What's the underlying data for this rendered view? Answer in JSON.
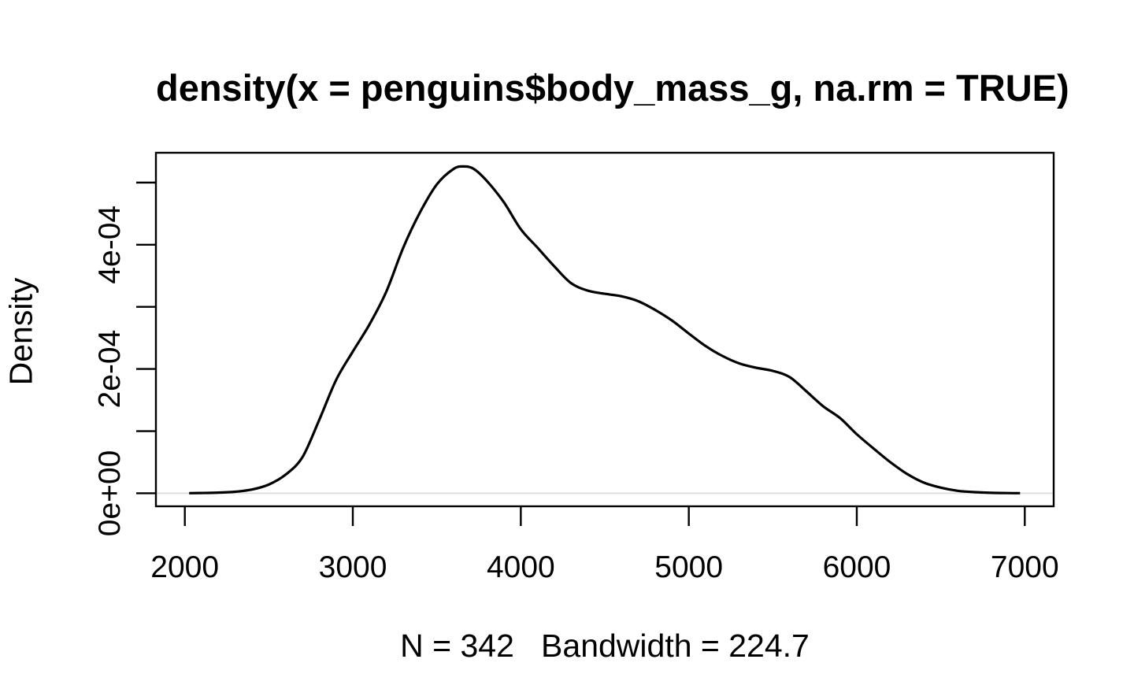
{
  "figure": {
    "title": "density(x = penguins$body_mass_g, na.rm = TRUE)",
    "subtitle": "N = 342   Bandwidth = 224.7",
    "y_axis_title": "Density"
  },
  "style": {
    "background": "#ffffff",
    "foreground": "#000000",
    "zero_line_color": "#dcdcdc"
  },
  "chart_data": {
    "type": "line",
    "title": "density(x = penguins$body_mass_g, na.rm = TRUE)",
    "xlabel": "N = 342   Bandwidth = 224.7",
    "ylabel": "Density",
    "sample_size": 342,
    "bandwidth": 224.7,
    "xlim": [
      1828,
      7172
    ],
    "ylim": [
      -2.1e-05,
      0.000548
    ],
    "grid": "off",
    "legend": "none",
    "box": true,
    "x_ticks": [
      {
        "v": 2000,
        "label": "2000"
      },
      {
        "v": 3000,
        "label": "3000"
      },
      {
        "v": 4000,
        "label": "4000"
      },
      {
        "v": 5000,
        "label": "5000"
      },
      {
        "v": 6000,
        "label": "6000"
      },
      {
        "v": 7000,
        "label": "7000"
      }
    ],
    "y_ticks": [
      {
        "v": 0,
        "label": "0e+00"
      },
      {
        "v": 0.0001,
        "label": ""
      },
      {
        "v": 0.0002,
        "label": "2e-04"
      },
      {
        "v": 0.0003,
        "label": ""
      },
      {
        "v": 0.0004,
        "label": "4e-04"
      },
      {
        "v": 0.0005,
        "label": ""
      }
    ],
    "baseline": {
      "y": 0,
      "color": "#dcdcdc"
    },
    "line_color": "#000000",
    "series": [
      {
        "name": "density of penguins$body_mass_g",
        "x": [
          2026,
          2100,
          2200,
          2300,
          2400,
          2500,
          2600,
          2700,
          2800,
          2900,
          3000,
          3100,
          3200,
          3300,
          3400,
          3500,
          3600,
          3660,
          3720,
          3800,
          3900,
          4000,
          4100,
          4200,
          4300,
          4400,
          4500,
          4600,
          4700,
          4800,
          4900,
          5000,
          5100,
          5200,
          5300,
          5400,
          5500,
          5600,
          5700,
          5800,
          5900,
          6000,
          6100,
          6200,
          6300,
          6400,
          6500,
          6600,
          6700,
          6800,
          6900,
          6972
        ],
        "y": [
          1e-07,
          4e-07,
          1e-06,
          2.5e-06,
          6e-06,
          1.4e-05,
          3e-05,
          5.8e-05,
          0.000118,
          0.000182,
          0.000228,
          0.000272,
          0.000325,
          0.000395,
          0.000452,
          0.000497,
          0.000522,
          0.000526,
          0.000522,
          0.000502,
          0.000468,
          0.000425,
          0.000395,
          0.000365,
          0.000338,
          0.000326,
          0.000321,
          0.000317,
          0.000309,
          0.000295,
          0.000278,
          0.000257,
          0.000237,
          0.000221,
          0.000209,
          0.000202,
          0.000197,
          0.000187,
          0.000164,
          0.00014,
          0.000121,
          9.5e-05,
          7.2e-05,
          5e-05,
          3.1e-05,
          1.7e-05,
          9e-06,
          4e-06,
          1.8e-06,
          7e-07,
          3e-07,
          2e-07
        ]
      }
    ]
  }
}
